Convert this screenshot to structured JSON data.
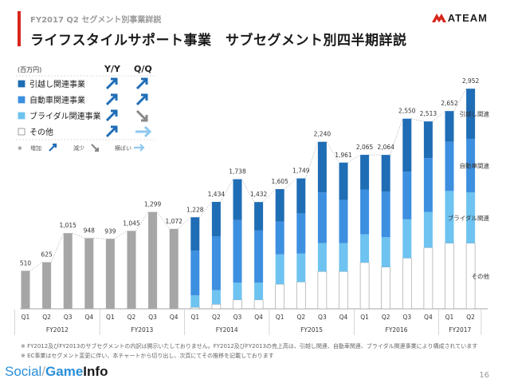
{
  "header": {
    "subtitle": "FY2017 Q2 セグメント別事業詳説",
    "title": "ライフスタイルサポート事業　サブセグメント別四半期詳説",
    "logo": "ATEAM"
  },
  "legend": {
    "unit": "(百万円)",
    "col_yy": "Y/Y",
    "col_qq": "Q/Q",
    "items": [
      {
        "label": "引越し関連事業",
        "color": "#1f6db5",
        "yy": "up",
        "qq": "up"
      },
      {
        "label": "自動車関連事業",
        "color": "#3d8fe0",
        "yy": "up",
        "qq": "up"
      },
      {
        "label": "ブライダル関連事業",
        "color": "#6ec3f0",
        "yy": "up",
        "qq": "down"
      },
      {
        "label": "その他",
        "color": "#ffffff",
        "yy": "up",
        "qq": "flat"
      }
    ],
    "key_prefix": "※",
    "key_up": "増加",
    "key_down": "減少",
    "key_flat": "横ばい"
  },
  "chart_data": {
    "type": "bar",
    "ylabel": "(百万円)",
    "quarters": [
      "Q1",
      "Q2",
      "Q3",
      "Q4",
      "Q1",
      "Q2",
      "Q3",
      "Q4",
      "Q1",
      "Q2",
      "Q3",
      "Q4",
      "Q1",
      "Q2",
      "Q3",
      "Q4",
      "Q1",
      "Q2",
      "Q3",
      "Q4",
      "Q1",
      "Q2"
    ],
    "fiscal_years": [
      {
        "label": "FY2012",
        "count": 4
      },
      {
        "label": "FY2013",
        "count": 4
      },
      {
        "label": "FY2014",
        "count": 4
      },
      {
        "label": "FY2015",
        "count": 4
      },
      {
        "label": "FY2016",
        "count": 4
      },
      {
        "label": "FY2017",
        "count": 2
      }
    ],
    "totals": [
      510,
      625,
      1015,
      948,
      939,
      1045,
      1299,
      1072,
      1228,
      1434,
      1738,
      1432,
      1605,
      1749,
      2240,
      1961,
      2065,
      2064,
      2550,
      2513,
      2652,
      2952
    ],
    "segmented_from_index": 8,
    "series": [
      {
        "name": "その他",
        "color": "#ffffff",
        "values": [
          null,
          null,
          null,
          null,
          null,
          null,
          null,
          null,
          20,
          60,
          120,
          120,
          330,
          360,
          500,
          500,
          620,
          560,
          680,
          820,
          880,
          880
        ]
      },
      {
        "name": "ブライダル関連",
        "color": "#6ec3f0",
        "values": [
          null,
          null,
          null,
          null,
          null,
          null,
          null,
          null,
          160,
          190,
          230,
          230,
          400,
          380,
          380,
          380,
          380,
          400,
          520,
          480,
          700,
          680
        ]
      },
      {
        "name": "自動車関連",
        "color": "#3d8fe0",
        "values": [
          null,
          null,
          null,
          null,
          null,
          null,
          null,
          null,
          600,
          720,
          840,
          700,
          440,
          540,
          680,
          580,
          600,
          610,
          640,
          720,
          660,
          720
        ]
      },
      {
        "name": "引越し関連",
        "color": "#1f6db5",
        "values": [
          null,
          null,
          null,
          null,
          null,
          null,
          null,
          null,
          448,
          464,
          548,
          382,
          435,
          469,
          680,
          501,
          465,
          494,
          710,
          493,
          412,
          672
        ]
      }
    ],
    "right_labels": [
      "引越し関連",
      "自動車関連",
      "ブライダル関連",
      "その他"
    ],
    "ylim": [
      0,
      3050
    ]
  },
  "footnotes": [
    "※ FY2012及びFY2013のサブセグメントの内訳は開示いたしておりません。FY2012及びFY2013の売上高は、引越し関連、自動車関連、ブライダル関連事業により構成されています",
    "※ EC事業はセグメント変更に伴い、本チャートから切り出し、次頁にてその推移を記載しております"
  ],
  "brand": {
    "social": "Social",
    "game": "Game",
    "info": "Info"
  },
  "page_number": "16"
}
